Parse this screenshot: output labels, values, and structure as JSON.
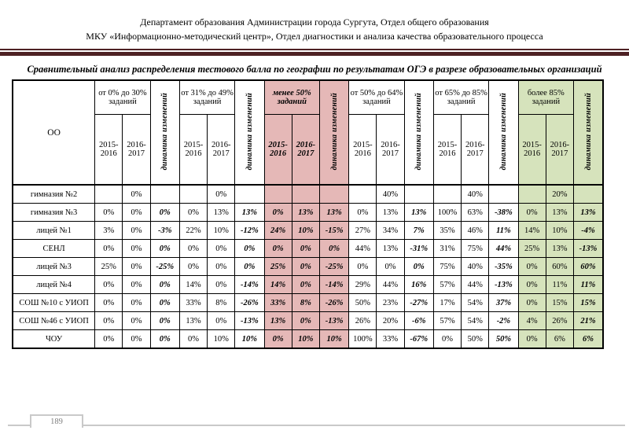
{
  "header": {
    "line1": "Департамент образования Администрации города Сургута, Отдел общего образования",
    "line2": "МКУ «Информационно-методический центр», Отдел диагностики и анализа качества образовательного процесса"
  },
  "title": "Сравнительный анализ распределения тестового балла по географии по результатам ОГЭ в разрезе образовательных организаций",
  "table": {
    "first_col_header": "ОО",
    "dynamics_label": "динамика изменений",
    "year_cols": [
      "2015-2016",
      "2016-2017"
    ],
    "groups": [
      {
        "label": "от 0% до 30% заданий",
        "style": "white"
      },
      {
        "label": "от 31% до 49% заданий",
        "style": "white"
      },
      {
        "label": "менее 50% заданий",
        "style": "pink"
      },
      {
        "label": "от 50% до 64% заданий",
        "style": "white"
      },
      {
        "label": "от 65% до 85% заданий",
        "style": "white"
      },
      {
        "label": "более 85% заданий",
        "style": "green"
      }
    ],
    "rows": [
      {
        "name": "гимназия №2",
        "cells": [
          "",
          "0%",
          "",
          "",
          "0%",
          "",
          "",
          "",
          "",
          "",
          "40%",
          "",
          "",
          "40%",
          "",
          "",
          "20%",
          ""
        ]
      },
      {
        "name": "гимназия №3",
        "cells": [
          "0%",
          "0%",
          "0%",
          "0%",
          "13%",
          "13%",
          "0%",
          "13%",
          "13%",
          "0%",
          "13%",
          "13%",
          "100%",
          "63%",
          "-38%",
          "0%",
          "13%",
          "13%"
        ]
      },
      {
        "name": "лицей №1",
        "cells": [
          "3%",
          "0%",
          "-3%",
          "22%",
          "10%",
          "-12%",
          "24%",
          "10%",
          "-15%",
          "27%",
          "34%",
          "7%",
          "35%",
          "46%",
          "11%",
          "14%",
          "10%",
          "-4%"
        ]
      },
      {
        "name": "СЕНЛ",
        "cells": [
          "0%",
          "0%",
          "0%",
          "0%",
          "0%",
          "0%",
          "0%",
          "0%",
          "0%",
          "44%",
          "13%",
          "-31%",
          "31%",
          "75%",
          "44%",
          "25%",
          "13%",
          "-13%"
        ]
      },
      {
        "name": "лицей №3",
        "cells": [
          "25%",
          "0%",
          "-25%",
          "0%",
          "0%",
          "0%",
          "25%",
          "0%",
          "-25%",
          "0%",
          "0%",
          "0%",
          "75%",
          "40%",
          "-35%",
          "0%",
          "60%",
          "60%"
        ]
      },
      {
        "name": "лицей №4",
        "cells": [
          "0%",
          "0%",
          "0%",
          "14%",
          "0%",
          "-14%",
          "14%",
          "0%",
          "-14%",
          "29%",
          "44%",
          "16%",
          "57%",
          "44%",
          "-13%",
          "0%",
          "11%",
          "11%"
        ]
      },
      {
        "name": "СОШ №10 с УИОП",
        "cells": [
          "0%",
          "0%",
          "0%",
          "33%",
          "8%",
          "-26%",
          "33%",
          "8%",
          "-26%",
          "50%",
          "23%",
          "-27%",
          "17%",
          "54%",
          "37%",
          "0%",
          "15%",
          "15%"
        ]
      },
      {
        "name": "СОШ №46 с УИОП",
        "cells": [
          "0%",
          "0%",
          "0%",
          "13%",
          "0%",
          "-13%",
          "13%",
          "0%",
          "-13%",
          "26%",
          "20%",
          "-6%",
          "57%",
          "54%",
          "-2%",
          "4%",
          "26%",
          "21%"
        ]
      },
      {
        "name": "ЧОУ",
        "cells": [
          "0%",
          "0%",
          "0%",
          "0%",
          "10%",
          "10%",
          "0%",
          "10%",
          "10%",
          "100%",
          "33%",
          "-67%",
          "0%",
          "50%",
          "50%",
          "0%",
          "6%",
          "6%"
        ]
      }
    ]
  },
  "footer": {
    "page_number": "189"
  },
  "colors": {
    "pink": "#E5B8B7",
    "green": "#D6E3BC",
    "divider_bar": "#4E2124",
    "footer_gray": "#C9C9C9"
  }
}
